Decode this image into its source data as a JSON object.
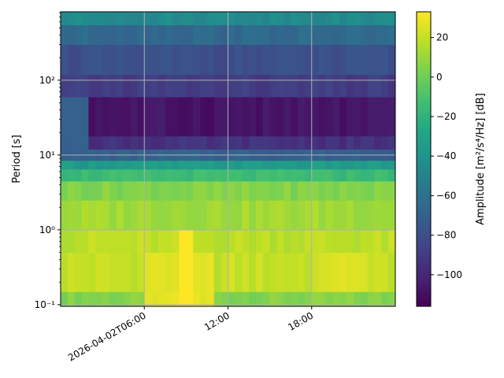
{
  "chart_data": {
    "type": "heatmap",
    "title": "",
    "xlabel": "",
    "ylabel": "Period [s]",
    "colorbar_label": "Amplitude [m²/s⁴/Hz] [dB]",
    "x_start": "2026-04-02T00:00",
    "x_end": "2026-04-02T23:30",
    "x_step_hours": 0.5,
    "x_tick_values": [
      "2026-04-02T06:00",
      "2026-04-02T12:00",
      "2026-04-02T18:00"
    ],
    "x_tick_labels": [
      "2026-04-02T06:00",
      "12:00",
      "18:00"
    ],
    "y_scale": "log",
    "ylim": [
      0.095,
      820
    ],
    "y_tick_values": [
      0.1,
      1,
      10,
      100
    ],
    "y_tick_labels": [
      "10⁻¹",
      "10⁰",
      "10¹",
      "10²"
    ],
    "colorbar_range": [
      -116,
      33
    ],
    "colorbar_ticks": [
      -100,
      -80,
      -60,
      -40,
      -20,
      0,
      20
    ],
    "colorbar_tick_labels": [
      "−100",
      "−80",
      "−60",
      "−40",
      "−20",
      "0",
      "20"
    ],
    "colormap": "viridis",
    "grid": true,
    "period_bands": [
      {
        "period_lo": 0.095,
        "period_hi": 0.15,
        "amplitude_db": 5
      },
      {
        "period_lo": 0.15,
        "period_hi": 0.5,
        "amplitude_db": 20
      },
      {
        "period_lo": 0.5,
        "period_hi": 1.0,
        "amplitude_db": 18
      },
      {
        "period_lo": 1.0,
        "period_hi": 2.5,
        "amplitude_db": 12
      },
      {
        "period_lo": 2.5,
        "period_hi": 4.5,
        "amplitude_db": 5
      },
      {
        "period_lo": 4.5,
        "period_hi": 6.5,
        "amplitude_db": -15
      },
      {
        "period_lo": 6.5,
        "period_hi": 8.5,
        "amplitude_db": -35
      },
      {
        "period_lo": 8.5,
        "period_hi": 12,
        "amplitude_db": -70
      },
      {
        "period_lo": 12,
        "period_hi": 18,
        "amplitude_db": -95
      },
      {
        "period_lo": 18,
        "period_hi": 60,
        "amplitude_db": -108
      },
      {
        "period_lo": 60,
        "period_hi": 120,
        "amplitude_db": -90
      },
      {
        "period_lo": 120,
        "period_hi": 300,
        "amplitude_db": -80
      },
      {
        "period_lo": 300,
        "period_hi": 550,
        "amplitude_db": -65
      },
      {
        "period_lo": 550,
        "period_hi": 820,
        "amplitude_db": -45
      }
    ],
    "hot_spots": [
      {
        "t_start": "2026-04-02T06:00",
        "t_end": "2026-04-02T11:00",
        "period_lo": 0.1,
        "period_hi": 0.45,
        "amplitude_db": 27
      },
      {
        "t_start": "2026-04-02T08:30",
        "t_end": "2026-04-02T09:30",
        "period_lo": 0.1,
        "period_hi": 1.2,
        "amplitude_db": 33
      },
      {
        "t_start": "2026-04-02T19:00",
        "t_end": "2026-04-02T22:00",
        "period_lo": 0.12,
        "period_hi": 0.4,
        "amplitude_db": 26
      },
      {
        "t_start": "2026-04-02T00:00",
        "t_end": "2026-04-02T02:00",
        "period_lo": 10,
        "period_hi": 40,
        "amplitude_db": -70
      }
    ]
  }
}
